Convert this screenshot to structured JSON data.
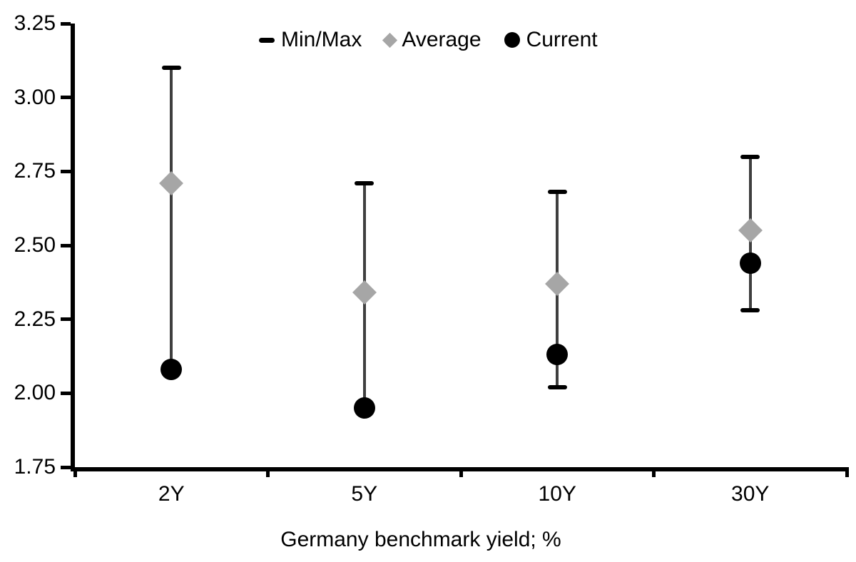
{
  "chart_data": {
    "type": "scatter",
    "subtype": "min-max-range-with-markers",
    "title": "",
    "xlabel": "Germany benchmark yield; %",
    "ylabel": "",
    "categories": [
      "2Y",
      "5Y",
      "10Y",
      "30Y"
    ],
    "series": [
      {
        "name": "Min/Max",
        "marker": "dash",
        "color": "#000000",
        "min": [
          2.08,
          1.95,
          2.02,
          2.28
        ],
        "max": [
          3.1,
          2.71,
          2.68,
          2.8
        ]
      },
      {
        "name": "Average",
        "marker": "diamond",
        "color": "#a6a6a6",
        "values": [
          2.71,
          2.34,
          2.37,
          2.55
        ]
      },
      {
        "name": "Current",
        "marker": "circle",
        "color": "#000000",
        "values": [
          2.08,
          1.95,
          2.13,
          2.44
        ]
      }
    ],
    "legend": [
      {
        "label": "Min/Max",
        "marker": "dash"
      },
      {
        "label": "Average",
        "marker": "diamond"
      },
      {
        "label": "Current",
        "marker": "circle"
      }
    ],
    "legend_position": "top-inside",
    "ylim": [
      1.75,
      3.25
    ],
    "ytick_step": 0.25,
    "y_ticks": [
      "3.25",
      "3.00",
      "2.75",
      "2.50",
      "2.25",
      "2.00",
      "1.75"
    ],
    "x_ticks": [
      "2Y",
      "5Y",
      "10Y",
      "30Y"
    ],
    "grid": false,
    "colors": {
      "background": "#ffffff",
      "axis": "#000000",
      "text": "#000000",
      "whisker_line": "#3f3f3f",
      "cap": "#000000",
      "average_marker": "#a6a6a6",
      "current_marker": "#000000"
    }
  }
}
